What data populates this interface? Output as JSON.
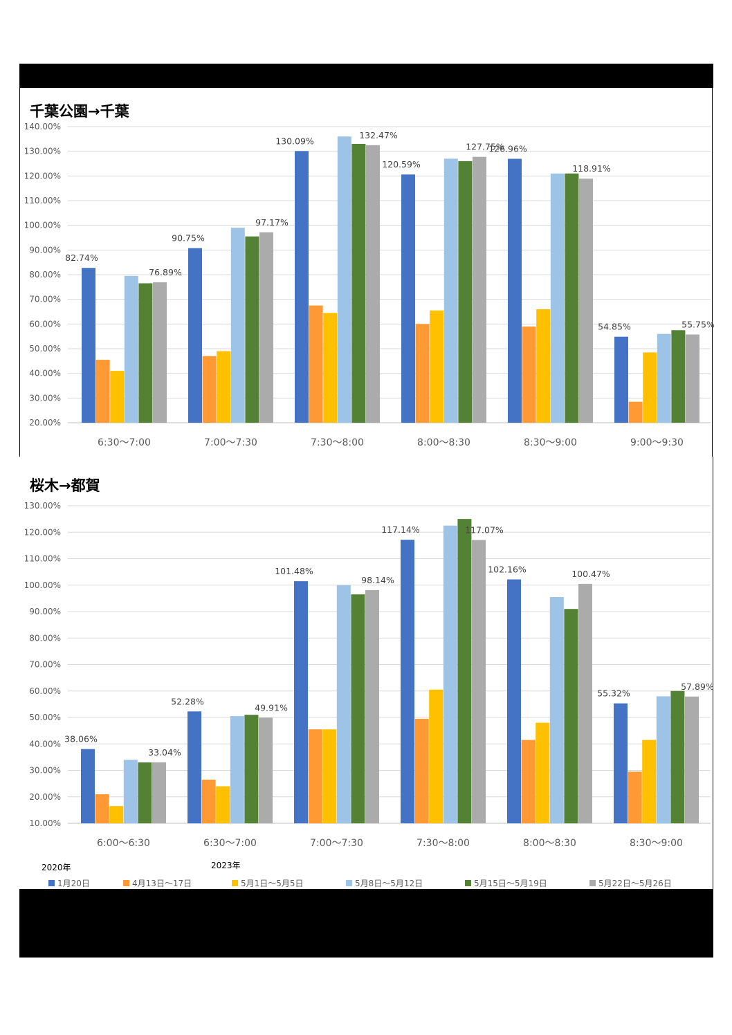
{
  "legend": {
    "year_2020": "2020年",
    "year_2023": "2023年",
    "items": [
      {
        "label": "1月20日",
        "color": "#4472C4"
      },
      {
        "label": "4月13日～17日",
        "color": "#FF9933"
      },
      {
        "label": "5月1日～5月5日",
        "color": "#FFC000"
      },
      {
        "label": "5月8日～5月12日",
        "color": "#9DC3E6"
      },
      {
        "label": "5月15日～5月19日",
        "color": "#548235"
      },
      {
        "label": "5月22日～5月26日",
        "color": "#ABABAB"
      }
    ]
  },
  "chart_data": [
    {
      "type": "bar",
      "title": "千葉公園→千葉",
      "categories": [
        "6:30～7:00",
        "7:00～7:30",
        "7:30～8:00",
        "8:00～8:30",
        "8:30～9:00",
        "9:00～9:30"
      ],
      "ylim": [
        20,
        140
      ],
      "yticks": [
        20,
        30,
        40,
        50,
        60,
        70,
        80,
        90,
        100,
        110,
        120,
        130,
        140
      ],
      "ytick_labels": [
        "20.00%",
        "30.00%",
        "40.00%",
        "50.00%",
        "60.00%",
        "70.00%",
        "80.00%",
        "90.00%",
        "100.00%",
        "110.00%",
        "120.00%",
        "130.00%",
        "140.00%"
      ],
      "series": [
        {
          "name": "1月20日",
          "values": [
            82.74,
            90.75,
            130.09,
            120.59,
            126.96,
            54.85
          ],
          "labels": [
            "82.74%",
            "90.75%",
            "130.09%",
            "120.59%",
            "126.96%",
            "54.85%"
          ]
        },
        {
          "name": "4月13日～17日",
          "values": [
            45.5,
            47.0,
            67.5,
            60.0,
            59.0,
            28.5
          ]
        },
        {
          "name": "5月1日～5月5日",
          "values": [
            41.0,
            49.0,
            64.5,
            65.5,
            66.0,
            48.5
          ]
        },
        {
          "name": "5月8日～5月12日",
          "values": [
            79.5,
            99.0,
            136.0,
            127.0,
            121.0,
            56.0
          ]
        },
        {
          "name": "5月15日～5月19日",
          "values": [
            76.5,
            95.5,
            133.0,
            126.0,
            121.0,
            57.5
          ]
        },
        {
          "name": "5月22日～5月26日",
          "values": [
            76.89,
            97.17,
            132.47,
            127.75,
            118.91,
            55.75
          ],
          "labels": [
            "76.89%",
            "97.17%",
            "132.47%",
            "127.75%",
            "118.91%",
            "55.75%"
          ]
        }
      ]
    },
    {
      "type": "bar",
      "title": "桜木→都賀",
      "categories": [
        "6:00～6:30",
        "6:30～7:00",
        "7:00～7:30",
        "7:30～8:00",
        "8:00～8:30",
        "8:30～9:00"
      ],
      "ylim": [
        10,
        130
      ],
      "yticks": [
        10,
        20,
        30,
        40,
        50,
        60,
        70,
        80,
        90,
        100,
        110,
        120,
        130
      ],
      "ytick_labels": [
        "10.00%",
        "20.00%",
        "30.00%",
        "40.00%",
        "50.00%",
        "60.00%",
        "70.00%",
        "80.00%",
        "90.00%",
        "100.00%",
        "110.00%",
        "120.00%",
        "130.00%"
      ],
      "series": [
        {
          "name": "1月20日",
          "values": [
            38.06,
            52.28,
            101.48,
            117.14,
            102.16,
            55.32
          ],
          "labels": [
            "38.06%",
            "52.28%",
            "101.48%",
            "117.14%",
            "102.16%",
            "55.32%"
          ]
        },
        {
          "name": "4月13日～17日",
          "values": [
            21.0,
            26.5,
            45.5,
            49.5,
            41.5,
            29.5
          ]
        },
        {
          "name": "5月1日～5月5日",
          "values": [
            16.5,
            24.0,
            45.5,
            60.5,
            48.0,
            41.5
          ]
        },
        {
          "name": "5月8日～5月12日",
          "values": [
            34.0,
            50.5,
            100.0,
            122.5,
            95.5,
            58.0
          ]
        },
        {
          "name": "5月15日～5月19日",
          "values": [
            33.0,
            51.0,
            96.5,
            125.0,
            91.0,
            60.0
          ]
        },
        {
          "name": "5月22日～5月26日",
          "values": [
            33.04,
            49.91,
            98.14,
            117.07,
            100.47,
            57.89
          ],
          "labels": [
            "33.04%",
            "49.91%",
            "98.14%",
            "117.07%",
            "100.47%",
            "57.89%"
          ]
        }
      ]
    }
  ]
}
